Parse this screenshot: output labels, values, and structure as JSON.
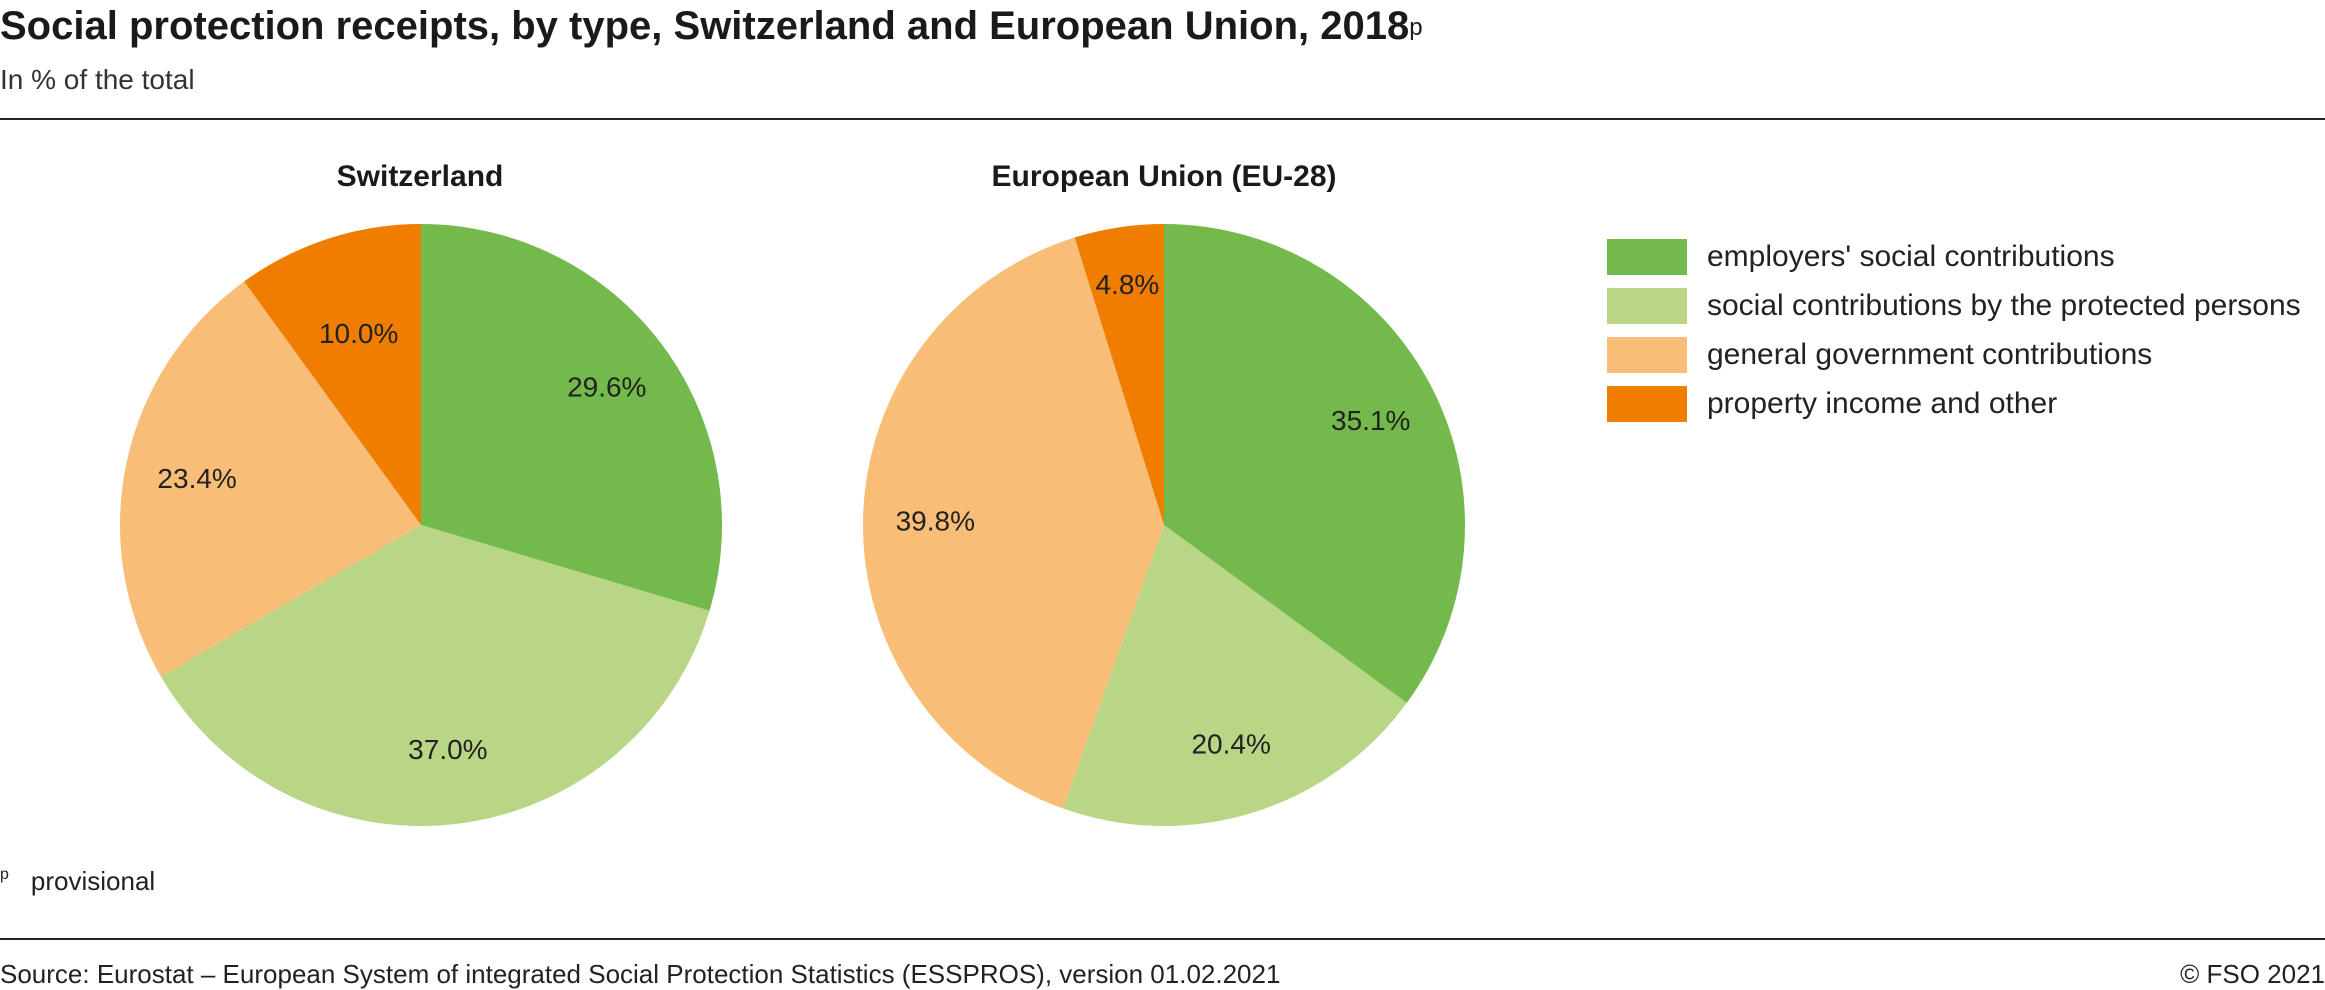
{
  "header": {
    "title": "Social protection receipts, by type, Switzerland and European Union, 2018",
    "title_superscript": "p",
    "subtitle": "In % of the total"
  },
  "colors": {
    "employers": "#74b94b",
    "protected": "#b9d686",
    "government": "#f8bd76",
    "property": "#ef7d00"
  },
  "legend": [
    {
      "label": "employers' social contributions",
      "color": "#74b94b"
    },
    {
      "label": "social contributions by the protected persons",
      "color": "#b9d686"
    },
    {
      "label": "general government contributions",
      "color": "#f8bd76"
    },
    {
      "label": "property income and other",
      "color": "#ef7d00"
    }
  ],
  "chart_data": [
    {
      "type": "pie",
      "title": "Switzerland",
      "categories": [
        "employers' social contributions",
        "social contributions by the protected persons",
        "general government contributions",
        "property income and other"
      ],
      "values": [
        29.6,
        37.0,
        23.4,
        10.0
      ],
      "labels": [
        "29.6%",
        "37.0%",
        "23.4%",
        "10.0%"
      ],
      "colors": [
        "#74b94b",
        "#b9d686",
        "#f8bd76",
        "#ef7d00"
      ]
    },
    {
      "type": "pie",
      "title": "European Union (EU-28)",
      "categories": [
        "employers' social contributions",
        "social contributions by the protected persons",
        "general government contributions",
        "property income and other"
      ],
      "values": [
        35.1,
        20.4,
        39.8,
        4.8
      ],
      "labels": [
        "35.1%",
        "20.4%",
        "39.8%",
        "4.8%"
      ],
      "colors": [
        "#74b94b",
        "#b9d686",
        "#f8bd76",
        "#ef7d00"
      ]
    }
  ],
  "footer": {
    "footnote_mark": "p",
    "footnote_text": "provisional",
    "source": "Source: Eurostat – European System of integrated Social Protection Statistics (ESSPROS), version 01.02.2021",
    "copyright": "© FSO 2021"
  }
}
